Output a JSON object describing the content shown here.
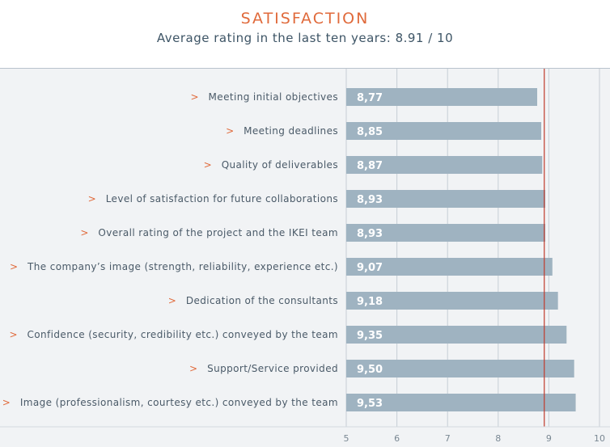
{
  "chart_data": {
    "type": "bar",
    "orientation": "horizontal",
    "title": "SATISFACTION",
    "subtitle": "Average rating in the last ten years: 8.91 / 10",
    "bullet": ">",
    "categories": [
      "Meeting initial objectives",
      "Meeting deadlines",
      "Quality of deliverables",
      "Level of satisfaction for future collaborations",
      "Overall rating of the project and the IKEI team",
      "The company’s image (strength, reliability, experience etc.)",
      "Dedication of the consultants",
      "Confidence (security, credibility etc.) conveyed by the team",
      "Support/Service provided",
      "Image (professionalism, courtesy etc.) conveyed by the team"
    ],
    "values": [
      8.77,
      8.85,
      8.87,
      8.93,
      8.93,
      9.07,
      9.18,
      9.35,
      9.5,
      9.53
    ],
    "value_labels": [
      "8,77",
      "8,85",
      "8,87",
      "8,93",
      "8,93",
      "9,07",
      "9,18",
      "9,35",
      "9,50",
      "9,53"
    ],
    "xlim": [
      5,
      10
    ],
    "x_ticks": [
      5,
      6,
      7,
      8,
      9,
      10
    ],
    "x_tick_labels": [
      "5",
      "6",
      "7",
      "8",
      "9",
      "10"
    ],
    "reference_line": 8.91,
    "grid": true,
    "colors": {
      "bar": "#9fb3c1",
      "reference_line": "#c0392b",
      "accent": "#e06a3b",
      "plot_background": "#f1f3f5",
      "gridline": "#c6ced5"
    }
  }
}
